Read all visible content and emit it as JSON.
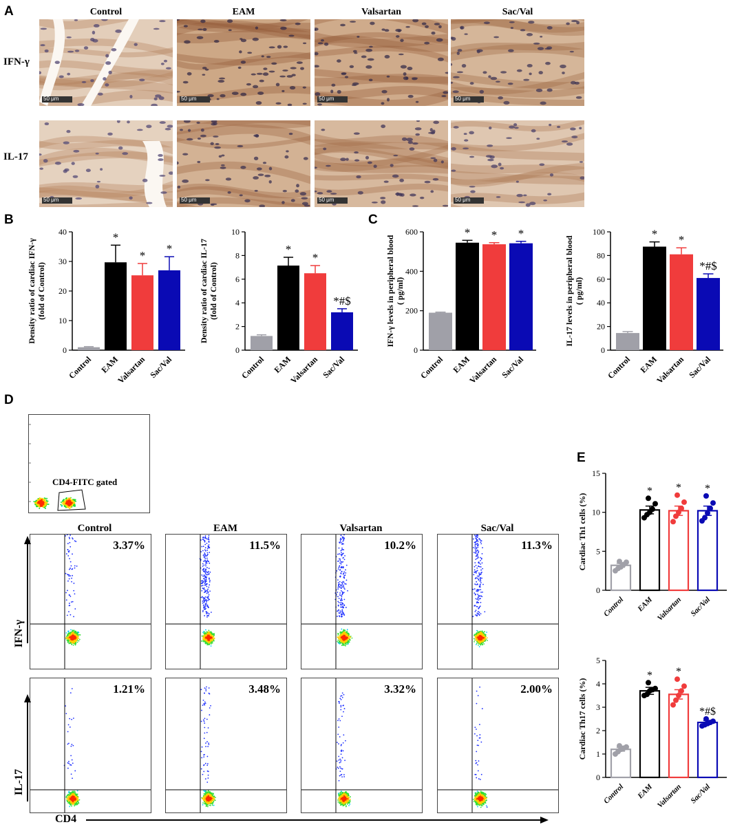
{
  "panels": {
    "A": "A",
    "B": "B",
    "C": "C",
    "D": "D",
    "E": "E"
  },
  "panel_a": {
    "columns": [
      "Control",
      "EAM",
      "Valsartan",
      "Sac/Val"
    ],
    "rows": [
      "IFN-γ",
      "IL-17"
    ],
    "scale_bar": "50 μm",
    "tissue_stain": [
      [
        0.2,
        0.75,
        0.7,
        0.55
      ],
      [
        0.15,
        0.6,
        0.5,
        0.3
      ]
    ]
  },
  "panel_d": {
    "gate_label": "CD4-FITC gated",
    "columns": [
      "Control",
      "EAM",
      "Valsartan",
      "Sac/Val"
    ],
    "row_labels": [
      "IFN-γ",
      "IL-17"
    ],
    "x_axis": "CD4",
    "percentages": [
      [
        "3.37%",
        "11.5%",
        "10.2%",
        "11.3%"
      ],
      [
        "1.21%",
        "3.48%",
        "3.32%",
        "2.00%"
      ]
    ]
  },
  "colors": {
    "control": "#a0a0a8",
    "eam": "#000000",
    "valsartan": "#f03c3c",
    "sacval": "#0a0ab4"
  },
  "chart_data": [
    {
      "id": "B1",
      "type": "bar",
      "categories": [
        "Control",
        "EAM",
        "Valsartan",
        "Sac/Val"
      ],
      "values": [
        1,
        29.7,
        25.3,
        27
      ],
      "errors": [
        0.2,
        5.8,
        4,
        4.6
      ],
      "ylabel": "Density ratio of cardiac IFN-γ",
      "ylabel2": "(fold of Control)",
      "ylim": [
        0,
        40
      ],
      "ticks": [
        0,
        10,
        20,
        30,
        40
      ],
      "annotations": [
        "",
        "*",
        "*",
        "*"
      ]
    },
    {
      "id": "B2",
      "type": "bar",
      "categories": [
        "Control",
        "EAM",
        "Valsartan",
        "Sac/Val"
      ],
      "values": [
        1.2,
        7.15,
        6.5,
        3.2
      ],
      "errors": [
        0.1,
        0.7,
        0.65,
        0.3
      ],
      "ylabel": "Density ratio of cardiac IL-17",
      "ylabel2": "(fold of Control)",
      "ylim": [
        0,
        10
      ],
      "ticks": [
        0,
        2,
        4,
        6,
        8,
        10
      ],
      "annotations": [
        "",
        "*",
        "*",
        "*#$"
      ]
    },
    {
      "id": "C1",
      "type": "bar",
      "categories": [
        "Control",
        "EAM",
        "Valsartan",
        "Sac/Val"
      ],
      "values": [
        190,
        545,
        537,
        542
      ],
      "errors": [
        3,
        12,
        8,
        10
      ],
      "ylabel": "IFN-γ levels in peripheral blood",
      "ylabel2": "( pg/ml)",
      "ylim": [
        0,
        600
      ],
      "ticks": [
        0,
        200,
        400,
        600
      ],
      "annotations": [
        "",
        "*",
        "*",
        "*"
      ]
    },
    {
      "id": "C2",
      "type": "bar",
      "categories": [
        "Control",
        "EAM",
        "Valsartan",
        "Sac/Val"
      ],
      "values": [
        14.5,
        87.5,
        81,
        61
      ],
      "errors": [
        1.2,
        4,
        5.5,
        3.5
      ],
      "ylabel": "IL-17 levels in peripheral blood",
      "ylabel2": "( pg/ml)",
      "ylim": [
        0,
        100
      ],
      "ticks": [
        0,
        20,
        40,
        60,
        80,
        100
      ],
      "annotations": [
        "",
        "*",
        "*",
        "*#$"
      ]
    },
    {
      "id": "E1",
      "type": "bar",
      "categories": [
        "Control",
        "EAM",
        "Valsartan",
        "Sac/Val"
      ],
      "values": [
        3.2,
        10.3,
        10.2,
        10.2
      ],
      "errors": [
        0.25,
        0.5,
        0.6,
        0.6
      ],
      "points": [
        [
          2.5,
          2.8,
          3.0,
          3.3,
          3.6,
          3.7
        ],
        [
          9.3,
          9.7,
          10.0,
          10.4,
          11.1,
          11.8
        ],
        [
          8.8,
          9.5,
          10.0,
          10.5,
          11.3,
          12.2
        ],
        [
          8.9,
          9.3,
          9.9,
          10.5,
          11.2,
          12.1
        ]
      ],
      "ylabel": "Cardiac Th1 cells (%)",
      "ylim": [
        0,
        15
      ],
      "ticks": [
        0,
        5,
        10,
        15
      ],
      "annotations": [
        "",
        "*",
        "*",
        "*"
      ]
    },
    {
      "id": "E2",
      "type": "bar",
      "categories": [
        "Control",
        "EAM",
        "Valsartan",
        "Sac/Val"
      ],
      "values": [
        1.2,
        3.7,
        3.55,
        2.35
      ],
      "errors": [
        0.08,
        0.15,
        0.2,
        0.08
      ],
      "points": [
        [
          1.0,
          1.1,
          1.2,
          1.25,
          1.3,
          1.35
        ],
        [
          3.5,
          3.55,
          3.7,
          3.75,
          3.8,
          4.05
        ],
        [
          3.1,
          3.3,
          3.5,
          3.7,
          3.9,
          4.2
        ],
        [
          2.2,
          2.25,
          2.3,
          2.35,
          2.4,
          2.5
        ]
      ],
      "ylabel": "Cardiac Th17 cells (%)",
      "ylim": [
        0,
        5
      ],
      "ticks": [
        0,
        1,
        2,
        3,
        4,
        5
      ],
      "annotations": [
        "",
        "*",
        "*",
        "*#$"
      ]
    }
  ]
}
